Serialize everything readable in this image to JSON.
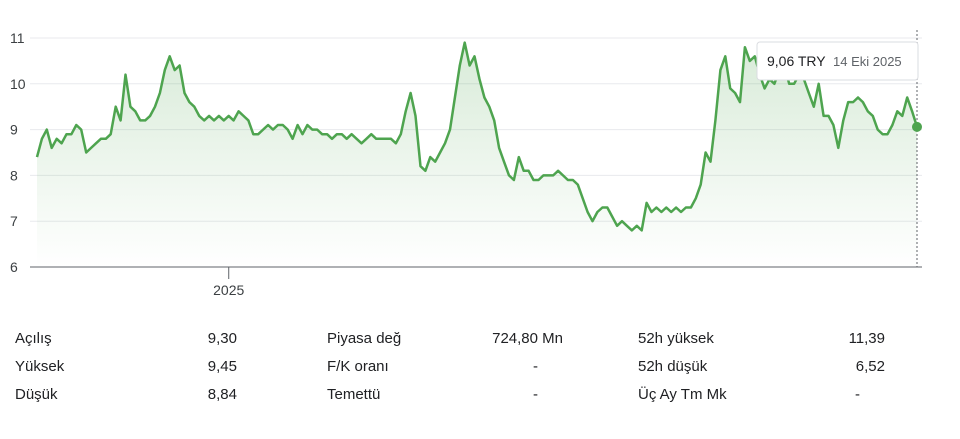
{
  "chart_data": {
    "type": "line",
    "color": "#4ea44f",
    "ylim": [
      6,
      11
    ],
    "yticks": [
      6,
      7,
      8,
      9,
      10,
      11
    ],
    "grid": true,
    "categories": [
      null,
      null,
      null,
      null,
      null,
      null,
      null,
      null,
      null,
      null,
      null,
      null,
      null,
      null,
      null,
      null,
      null,
      null,
      null,
      null,
      null,
      null,
      null,
      null,
      null,
      null,
      null,
      null,
      null,
      null,
      null,
      null,
      null,
      null,
      null,
      null,
      null,
      null,
      null,
      "2025",
      null,
      null,
      null,
      null,
      null,
      null,
      null,
      null,
      null,
      null,
      null,
      null,
      null,
      null,
      null,
      null,
      null,
      null,
      null,
      null,
      null,
      null,
      null,
      null,
      null,
      null,
      null,
      null,
      null,
      null,
      null,
      null,
      null,
      null,
      null,
      null,
      null,
      null,
      null,
      null,
      null,
      null,
      null,
      null,
      null,
      null,
      null,
      null,
      null,
      null,
      null,
      null,
      null,
      null,
      null,
      null,
      null,
      null,
      null,
      null,
      null,
      null,
      null,
      null,
      null,
      null,
      null,
      null,
      null,
      null,
      null,
      null,
      null,
      null,
      null,
      null,
      null,
      null,
      null,
      null,
      null,
      null,
      null,
      null,
      null,
      null,
      null,
      null,
      null,
      null,
      null,
      null,
      null,
      null,
      null,
      null,
      null,
      null,
      null,
      null,
      null,
      null,
      null,
      null,
      null,
      null,
      null,
      null,
      null,
      null,
      null,
      null,
      null,
      null,
      null,
      null,
      null,
      null,
      null,
      null,
      null,
      null,
      null,
      null,
      null,
      null,
      null,
      null,
      null,
      null,
      null,
      null,
      null,
      null,
      null,
      null,
      null,
      null,
      null,
      null
    ],
    "values": [
      8.4,
      8.8,
      9.0,
      8.6,
      8.8,
      8.7,
      8.9,
      8.9,
      9.1,
      9.0,
      8.5,
      8.6,
      8.7,
      8.8,
      8.8,
      8.9,
      9.5,
      9.2,
      10.2,
      9.5,
      9.4,
      9.2,
      9.2,
      9.3,
      9.5,
      9.8,
      10.3,
      10.6,
      10.3,
      10.4,
      9.8,
      9.6,
      9.5,
      9.3,
      9.2,
      9.3,
      9.2,
      9.3,
      9.2,
      9.3,
      9.2,
      9.4,
      9.3,
      9.2,
      8.9,
      8.9,
      9.0,
      9.1,
      9.0,
      9.1,
      9.1,
      9.0,
      8.8,
      9.1,
      8.9,
      9.1,
      9.0,
      9.0,
      8.9,
      8.9,
      8.8,
      8.9,
      8.9,
      8.8,
      8.9,
      8.8,
      8.7,
      8.8,
      8.9,
      8.8,
      8.8,
      8.8,
      8.8,
      8.7,
      8.9,
      9.4,
      9.8,
      9.3,
      8.2,
      8.1,
      8.4,
      8.3,
      8.5,
      8.7,
      9.0,
      9.7,
      10.4,
      10.9,
      10.4,
      10.6,
      10.1,
      9.7,
      9.5,
      9.2,
      8.6,
      8.3,
      8.0,
      7.9,
      8.4,
      8.1,
      8.1,
      7.9,
      7.9,
      8.0,
      8.0,
      8.0,
      8.1,
      8.0,
      7.9,
      7.9,
      7.8,
      7.5,
      7.2,
      7.0,
      7.2,
      7.3,
      7.3,
      7.1,
      6.9,
      7.0,
      6.9,
      6.8,
      6.9,
      6.8,
      7.4,
      7.2,
      7.3,
      7.2,
      7.3,
      7.2,
      7.3,
      7.2,
      7.3,
      7.3,
      7.5,
      7.8,
      8.5,
      8.3,
      9.2,
      10.3,
      10.6,
      9.9,
      9.8,
      9.6,
      10.8,
      10.5,
      10.6,
      10.2,
      9.9,
      10.1,
      10.0,
      10.3,
      10.4,
      10.0,
      10.0,
      10.2,
      10.1,
      9.8,
      9.5,
      10.0,
      9.3,
      9.3,
      9.1,
      8.6,
      9.2,
      9.6,
      9.6,
      9.7,
      9.6,
      9.4,
      9.3,
      9.0,
      8.9,
      8.9,
      9.1,
      9.4,
      9.3,
      9.7,
      9.4,
      9.06
    ],
    "tooltip": {
      "label": "9,06 TRY",
      "date": "14 Eki 2025"
    }
  },
  "stats": {
    "rows": [
      [
        [
          "Açılış",
          "9,30"
        ],
        [
          "Piyasa değ",
          "724,80 Mn"
        ],
        [
          "52h yüksek",
          "11,39"
        ]
      ],
      [
        [
          "Yüksek",
          "9,45"
        ],
        [
          "F/K oranı",
          "-"
        ],
        [
          "52h düşük",
          "6,52"
        ]
      ],
      [
        [
          "Düşük",
          "8,84"
        ],
        [
          "Temettü",
          "-"
        ],
        [
          "Üç Ay Tm Mk",
          "-"
        ]
      ]
    ]
  }
}
